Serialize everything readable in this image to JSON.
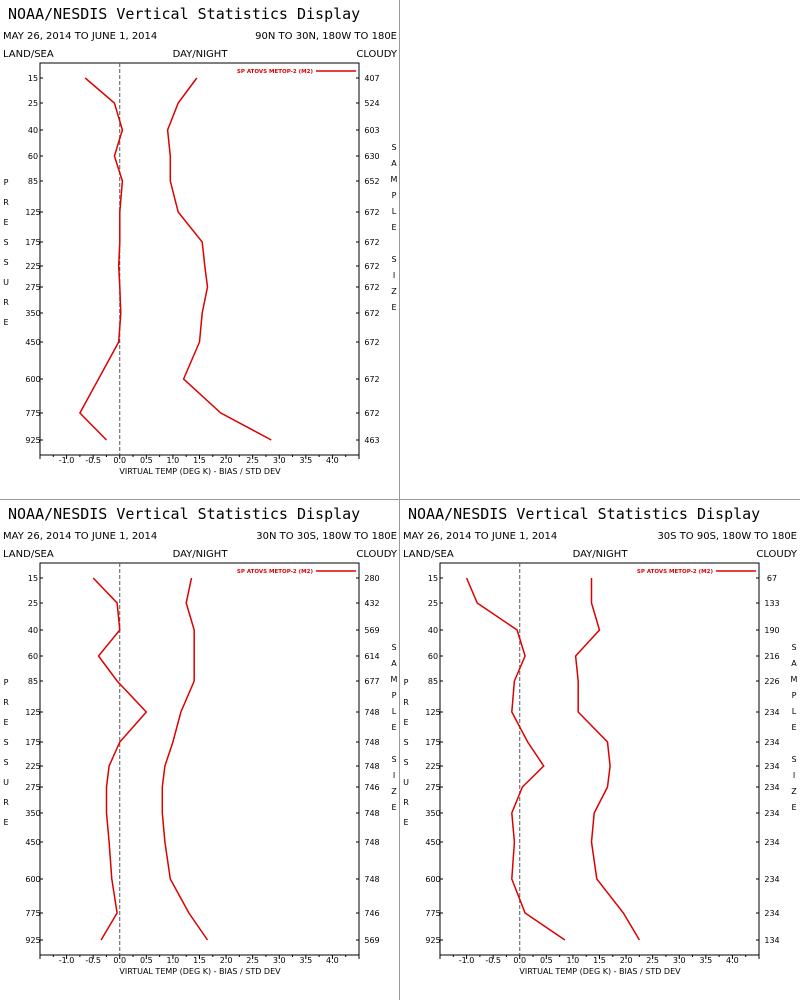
{
  "panels": [
    {
      "title": "NOAA/NESDIS Vertical Statistics Display",
      "date_range": "MAY 26, 2014 TO JUNE 1, 2014",
      "region": "90N TO 30N, 180W TO 180E",
      "labels": {
        "left": "LAND/SEA",
        "center": "DAY/NIGHT",
        "right": "CLOUDY"
      },
      "pressure_axis_label": [
        "P",
        "R",
        "E",
        "S",
        "S",
        "U",
        "R",
        "E"
      ],
      "sample_axis_label": [
        "S",
        "A",
        "M",
        "P",
        "L",
        "E",
        "",
        "S",
        "I",
        "Z",
        "E"
      ],
      "chart_data": {
        "type": "line",
        "xlabel": "VIRTUAL TEMP (DEG K) - BIAS / STD DEV",
        "x_ticks": [
          "-1.0",
          "-0.5",
          "0.0",
          "0.5",
          "1.0",
          "1.5",
          "2.0",
          "2.5",
          "3.0",
          "3.5",
          "4.0"
        ],
        "xlim": [
          -1.5,
          4.5
        ],
        "pressure_levels": [
          "15",
          "25",
          "40",
          "60",
          "85",
          "125",
          "175",
          "225",
          "275",
          "350",
          "450",
          "600",
          "775",
          "925"
        ],
        "sample_size": [
          "407",
          "524",
          "603",
          "630",
          "652",
          "672",
          "672",
          "672",
          "672",
          "672",
          "672",
          "672",
          "672",
          "463"
        ],
        "legend": "SP ATOVS METOP-2 (M2)",
        "series": [
          {
            "role": "bias",
            "values": [
              -0.65,
              -0.1,
              0.05,
              -0.1,
              0.05,
              0.0,
              0.0,
              -0.02,
              0.0,
              0.02,
              -0.02,
              -0.4,
              -0.75,
              -0.25
            ]
          },
          {
            "role": "std_dev",
            "values": [
              1.45,
              1.1,
              0.9,
              0.95,
              0.95,
              1.1,
              1.55,
              1.6,
              1.65,
              1.55,
              1.5,
              1.2,
              1.9,
              2.85
            ]
          }
        ]
      }
    },
    {
      "title": "NOAA/NESDIS Vertical Statistics Display",
      "date_range": "MAY 26, 2014 TO JUNE 1, 2014",
      "region": "30N TO 30S, 180W TO 180E",
      "labels": {
        "left": "LAND/SEA",
        "center": "DAY/NIGHT",
        "right": "CLOUDY"
      },
      "pressure_axis_label": [
        "P",
        "R",
        "E",
        "S",
        "S",
        "U",
        "R",
        "E"
      ],
      "sample_axis_label": [
        "S",
        "A",
        "M",
        "P",
        "L",
        "E",
        "",
        "S",
        "I",
        "Z",
        "E"
      ],
      "chart_data": {
        "type": "line",
        "xlabel": "VIRTUAL TEMP (DEG K) - BIAS / STD DEV",
        "x_ticks": [
          "-1.0",
          "-0.5",
          "0.0",
          "0.5",
          "1.0",
          "1.5",
          "2.0",
          "2.5",
          "3.0",
          "3.5",
          "4.0"
        ],
        "xlim": [
          -1.5,
          4.5
        ],
        "pressure_levels": [
          "15",
          "25",
          "40",
          "60",
          "85",
          "125",
          "175",
          "225",
          "275",
          "350",
          "450",
          "600",
          "775",
          "925"
        ],
        "sample_size": [
          "280",
          "432",
          "569",
          "614",
          "677",
          "748",
          "748",
          "748",
          "746",
          "748",
          "748",
          "748",
          "746",
          "569"
        ],
        "legend": "SP ATOVS METOP-2 (M2)",
        "series": [
          {
            "role": "bias",
            "values": [
              -0.5,
              -0.05,
              0.0,
              -0.4,
              -0.05,
              0.5,
              0.0,
              -0.2,
              -0.25,
              -0.25,
              -0.2,
              -0.15,
              -0.05,
              -0.35
            ]
          },
          {
            "role": "std_dev",
            "values": [
              1.35,
              1.25,
              1.4,
              1.4,
              1.4,
              1.15,
              1.0,
              0.85,
              0.8,
              0.8,
              0.85,
              0.95,
              1.3,
              1.65
            ]
          }
        ]
      }
    },
    {
      "title": "NOAA/NESDIS Vertical Statistics Display",
      "date_range": "MAY 26, 2014 TO JUNE 1, 2014",
      "region": "30S TO 90S, 180W TO 180E",
      "labels": {
        "left": "LAND/SEA",
        "center": "DAY/NIGHT",
        "right": "CLOUDY"
      },
      "pressure_axis_label": [
        "P",
        "R",
        "E",
        "S",
        "S",
        "U",
        "R",
        "E"
      ],
      "sample_axis_label": [
        "S",
        "A",
        "M",
        "P",
        "L",
        "E",
        "",
        "S",
        "I",
        "Z",
        "E"
      ],
      "chart_data": {
        "type": "line",
        "xlabel": "VIRTUAL TEMP (DEG K) - BIAS / STD DEV",
        "x_ticks": [
          "-1.0",
          "-0.5",
          "0.0",
          "0.5",
          "1.0",
          "1.5",
          "2.0",
          "2.5",
          "3.0",
          "3.5",
          "4.0"
        ],
        "xlim": [
          -1.5,
          4.5
        ],
        "pressure_levels": [
          "15",
          "25",
          "40",
          "60",
          "85",
          "125",
          "175",
          "225",
          "275",
          "350",
          "450",
          "600",
          "775",
          "925"
        ],
        "sample_size": [
          "67",
          "133",
          "190",
          "216",
          "226",
          "234",
          "234",
          "234",
          "234",
          "234",
          "234",
          "234",
          "234",
          "134"
        ],
        "legend": "SP ATOVS METOP-2 (M2)",
        "series": [
          {
            "role": "bias",
            "values": [
              -1.0,
              -0.8,
              -0.05,
              0.1,
              -0.1,
              -0.15,
              0.15,
              0.45,
              0.05,
              -0.15,
              -0.1,
              -0.15,
              0.1,
              0.85
            ]
          },
          {
            "role": "std_dev",
            "values": [
              1.35,
              1.35,
              1.5,
              1.05,
              1.1,
              1.1,
              1.65,
              1.7,
              1.65,
              1.4,
              1.35,
              1.45,
              1.95,
              2.25
            ]
          }
        ]
      }
    }
  ],
  "colors": {
    "series": "#dd0000",
    "axis": "#000000",
    "divider": "#999999",
    "zero_line": "#555555"
  }
}
